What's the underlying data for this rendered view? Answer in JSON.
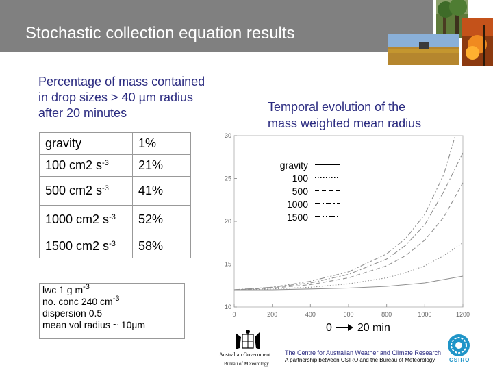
{
  "title": "Stochastic collection equation results",
  "subheading": [
    "Percentage of mass contained",
    "in drop sizes > 40 µm radius",
    "after 20 minutes"
  ],
  "table": [
    {
      "label": "gravity",
      "exp": "",
      "pct": "1%"
    },
    {
      "label": "100 cm2 s",
      "exp": "-3",
      "pct": "21%"
    },
    {
      "label": "500 cm2 s",
      "exp": "-3",
      "pct": "41%"
    },
    {
      "label": "1000 cm2 s",
      "exp": "-3",
      "pct": "52%"
    },
    {
      "label": "1500 cm2 s",
      "exp": "-3",
      "pct": "58%"
    }
  ],
  "info": {
    "lwc": "lwc 1 g m",
    "lwc_exp": "-3",
    "noconc": "no. conc 240 cm",
    "noconc_exp": "-3",
    "dispersion": "dispersion 0.5",
    "meanvol": "mean vol radius ~ 10µm"
  },
  "temporal_title": [
    "Temporal evolution of the",
    "mass weighted mean radius"
  ],
  "axis_note": {
    "start": "0",
    "end": "20 min"
  },
  "footer": {
    "centre": "The Centre for Australian Weather and Climate Research",
    "partnership": "A partnership between CSIRO and the Bureau of Meteorology",
    "govt": "Australian Government",
    "bom": "Bureau of Meteorology",
    "csiro": "CSIRO"
  },
  "colors": {
    "title_bar": "#808080",
    "text_blue": "#2b2b80",
    "curve_gray": "#909090"
  },
  "chart_data": {
    "type": "line",
    "xlim": [
      0,
      1200
    ],
    "ylim": [
      10,
      30
    ],
    "xticks": [
      0,
      200,
      400,
      600,
      800,
      1000,
      1200
    ],
    "yticks": [
      10,
      15,
      20,
      25,
      30
    ],
    "legend_position": "top-left",
    "series": [
      {
        "name": "gravity",
        "dash": "solid",
        "x": [
          0,
          200,
          400,
          600,
          800,
          1000,
          1100,
          1200
        ],
        "y": [
          12.0,
          12.0,
          12.1,
          12.2,
          12.4,
          12.8,
          13.2,
          13.6
        ]
      },
      {
        "name": "100",
        "dash": "dotted",
        "x": [
          0,
          200,
          400,
          600,
          800,
          900,
          1000,
          1100,
          1200
        ],
        "y": [
          12.0,
          12.1,
          12.3,
          12.7,
          13.4,
          14.0,
          14.8,
          16.0,
          17.5
        ]
      },
      {
        "name": "500",
        "dash": "dashed",
        "x": [
          0,
          200,
          400,
          600,
          800,
          900,
          1000,
          1100,
          1200
        ],
        "y": [
          12.0,
          12.2,
          12.6,
          13.4,
          14.8,
          16.0,
          17.8,
          20.5,
          24.5
        ]
      },
      {
        "name": "1000",
        "dash": "dashdot",
        "x": [
          0,
          200,
          400,
          600,
          800,
          900,
          1000,
          1100,
          1200
        ],
        "y": [
          12.0,
          12.3,
          12.8,
          13.8,
          15.6,
          17.2,
          19.6,
          23.5,
          28.0
        ]
      },
      {
        "name": "1500",
        "dash": "dashdotdot",
        "x": [
          0,
          200,
          400,
          600,
          800,
          900,
          1000,
          1100,
          1160
        ],
        "y": [
          12.0,
          12.3,
          13.0,
          14.1,
          16.2,
          18.0,
          20.8,
          25.5,
          30.0
        ]
      }
    ]
  }
}
